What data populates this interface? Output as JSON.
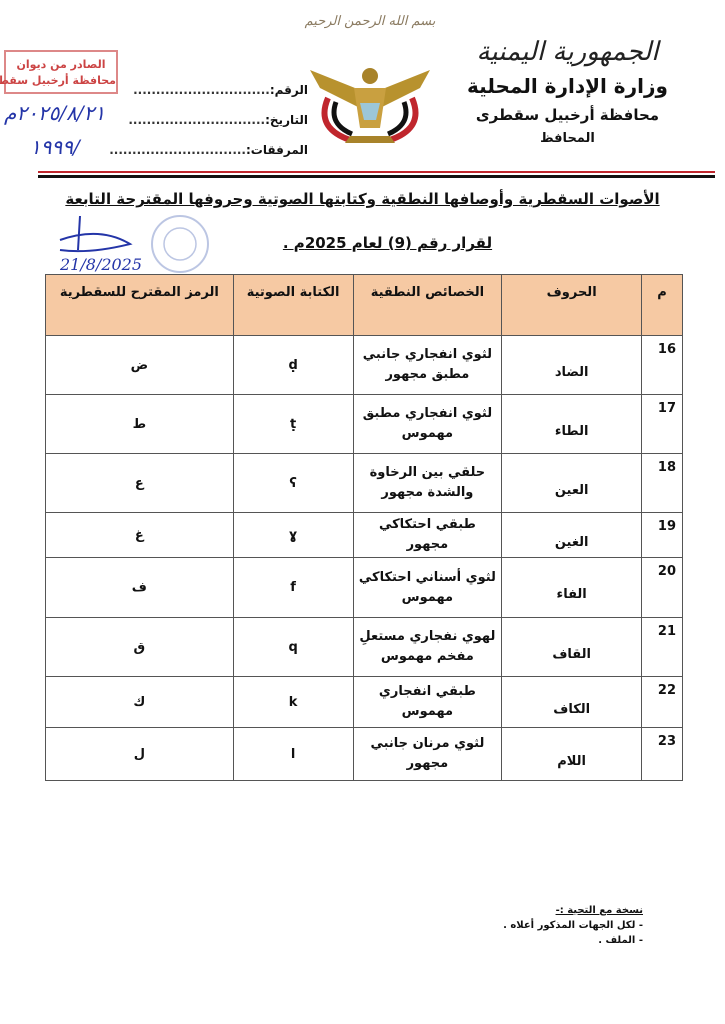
{
  "header": {
    "basmala": "بسم الله الرحمن الرحيم",
    "republic": "الجمهورية اليمنية",
    "ministry": "وزارة الإدارة المحلية",
    "governorate": "محافظة أرخبيل سقطرى",
    "governor": "المحافظ",
    "ref_label": "الرقم:",
    "date_label": "التاريخ:",
    "attachments_label": "المرفقات:",
    "dots": "..............................",
    "stamp_line1": "الصادر من ديوان",
    "stamp_line2": "محافظة أرخبيل سقطرى",
    "handwritten_date": "٢٠٢٥/٨/٢١م",
    "handwritten_number": "١٩٩٩/"
  },
  "colors": {
    "header_fill": "#f6c9a3",
    "rule_red": "#c0262d",
    "rule_black": "#111111",
    "ink": "#2435a8"
  },
  "title": {
    "line1": "الأصوات السقطرية وأوصافها النطقية وكتابتها الصوتية وحروفها المقترحة التابعة",
    "line2": "لقرار رقم (9) لعام 2025م ."
  },
  "signature": {
    "date": "21/8/2025"
  },
  "table": {
    "headers": [
      "م",
      "الحروف",
      "الخصائص النطقية",
      "الكتابة  الصوتية",
      "الرمز المقترح للسقطرية"
    ],
    "rows": [
      {
        "n": "16",
        "letter": "الضاد",
        "features": "لثوي انفجاري جانبي مطبق مجهور",
        "phonetic": "ḍ",
        "symbol": "ض"
      },
      {
        "n": "17",
        "letter": "الطاء",
        "features": "لثوي انفجاري مطبق مهموس",
        "phonetic": "ṭ",
        "symbol": "ط"
      },
      {
        "n": "18",
        "letter": "العين",
        "features": "حلقي بين الرخاوة والشدة مجهور",
        "phonetic": "ʕ",
        "symbol": "ع"
      },
      {
        "n": "19",
        "letter": "الغين",
        "features": "طبقي احتكاكي مجهور",
        "phonetic": "ɣ",
        "symbol": "غ"
      },
      {
        "n": "20",
        "letter": "الفاء",
        "features": "لثوي أسناني احتكاكي مهموس",
        "phonetic": "f",
        "symbol": "ف"
      },
      {
        "n": "21",
        "letter": "القاف",
        "features": "لهوي نفجاري مستعلِ مفخم مهموس",
        "phonetic": "q",
        "symbol": "ق"
      },
      {
        "n": "22",
        "letter": "الكاف",
        "features": "طبقي انفجاري مهموس",
        "phonetic": "k",
        "symbol": "ك"
      },
      {
        "n": "23",
        "letter": "اللام",
        "features": "لثوي مرنان جانبي مجهور",
        "phonetic": "l",
        "symbol": "ل"
      }
    ]
  },
  "footer": {
    "heading": "نسخة مع التحية :-",
    "items": [
      "- لكل الجهات المذكور أعلاه .",
      "- الملف ."
    ]
  }
}
